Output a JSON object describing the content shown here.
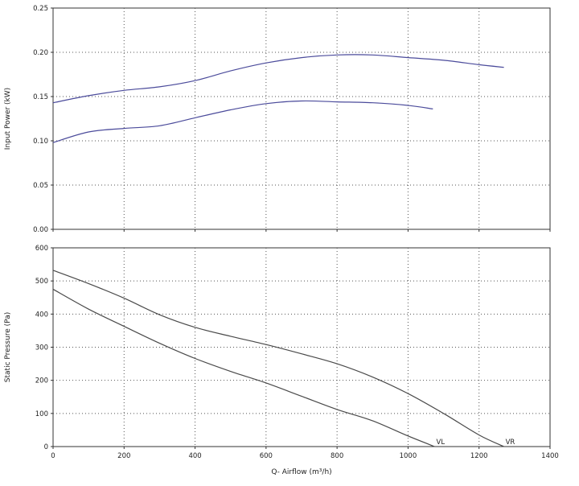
{
  "chart_data": [
    {
      "type": "line",
      "ylabel": "Input Power (kW)",
      "xlim": [
        0,
        1400
      ],
      "ylim": [
        0,
        0.25
      ],
      "x_ticks": [
        0,
        200,
        400,
        600,
        800,
        1000,
        1200,
        1400
      ],
      "y_ticks": [
        "0.00",
        "0.05",
        "0.10",
        "0.15",
        "0.20",
        "0.25"
      ],
      "grid": true,
      "grid_style": "dotted",
      "series_color": "#4b4b9b",
      "series": [
        {
          "points": [
            [
              0,
              0.143
            ],
            [
              100,
              0.151
            ],
            [
              200,
              0.157
            ],
            [
              300,
              0.161
            ],
            [
              400,
              0.168
            ],
            [
              500,
              0.179
            ],
            [
              600,
              0.188
            ],
            [
              700,
              0.194
            ],
            [
              800,
              0.197
            ],
            [
              900,
              0.197
            ],
            [
              1000,
              0.194
            ],
            [
              1100,
              0.191
            ],
            [
              1200,
              0.186
            ],
            [
              1270,
              0.183
            ]
          ]
        },
        {
          "points": [
            [
              0,
              0.098
            ],
            [
              100,
              0.11
            ],
            [
              200,
              0.114
            ],
            [
              300,
              0.117
            ],
            [
              400,
              0.126
            ],
            [
              500,
              0.135
            ],
            [
              600,
              0.142
            ],
            [
              700,
              0.145
            ],
            [
              800,
              0.144
            ],
            [
              900,
              0.143
            ],
            [
              1000,
              0.14
            ],
            [
              1070,
              0.136
            ]
          ]
        }
      ]
    },
    {
      "type": "line",
      "xlabel": "Q- Airflow (m³/h)",
      "ylabel": "Static Pressure (Pa)",
      "xlim": [
        0,
        1400
      ],
      "ylim": [
        0,
        600
      ],
      "x_ticks": [
        "0",
        "200",
        "400",
        "600",
        "800",
        "1000",
        "1200",
        "1400"
      ],
      "y_ticks": [
        "0",
        "100",
        "200",
        "300",
        "400",
        "500",
        "600"
      ],
      "grid": true,
      "grid_style": "dotted",
      "series_color": "#4a4a4a",
      "series": [
        {
          "name": "VR",
          "points": [
            [
              0,
              532
            ],
            [
              100,
              492
            ],
            [
              200,
              448
            ],
            [
              300,
              398
            ],
            [
              400,
              360
            ],
            [
              500,
              333
            ],
            [
              600,
              308
            ],
            [
              700,
              280
            ],
            [
              800,
              250
            ],
            [
              900,
              210
            ],
            [
              1000,
              160
            ],
            [
              1100,
              100
            ],
            [
              1200,
              35
            ],
            [
              1270,
              0
            ]
          ]
        },
        {
          "name": "VL",
          "points": [
            [
              0,
              475
            ],
            [
              100,
              415
            ],
            [
              200,
              363
            ],
            [
              300,
              312
            ],
            [
              400,
              266
            ],
            [
              500,
              227
            ],
            [
              600,
              192
            ],
            [
              700,
              152
            ],
            [
              800,
              112
            ],
            [
              900,
              78
            ],
            [
              1000,
              32
            ],
            [
              1075,
              0
            ]
          ]
        }
      ]
    }
  ]
}
